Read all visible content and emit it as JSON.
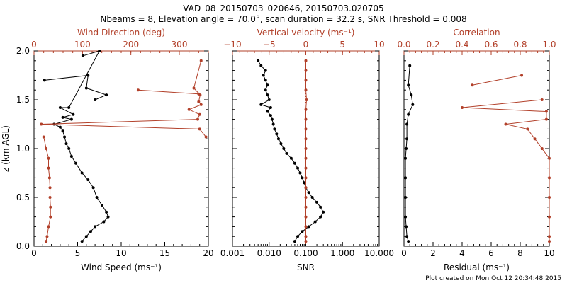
{
  "title_line1": "VAD_08_20150703_020646, 20150703.020705",
  "title_line2": "Nbeams = 8, Elevation angle = 70.0°, scan duration = 32.2 s, SNR Threshold = 0.008",
  "footer": "Plot created on Mon Oct 12 20:34:48 2015",
  "colors": {
    "black": "#000000",
    "red": "#b2402a"
  },
  "chart_data": [
    {
      "type": "scatter",
      "ylabel": "z (km AGL)",
      "ylim": [
        0,
        2
      ],
      "yticks": [
        "0.0",
        "0.5",
        "1.0",
        "1.5",
        "2.0"
      ],
      "xlabel": "Wind Speed (ms⁻¹)",
      "xlim": [
        0,
        20
      ],
      "xticks": [
        "0",
        "5",
        "10",
        "15",
        "20"
      ],
      "x2label": "Wind Direction (deg)",
      "x2lim": [
        0,
        360
      ],
      "x2ticks": [
        "0",
        "100",
        "200",
        "300"
      ],
      "series": [
        {
          "color": "#000000",
          "axis": "bottom",
          "points": [
            [
              5.6,
              1.95
            ],
            [
              7.5,
              2.0
            ],
            [
              4.0,
              1.42
            ],
            [
              3.0,
              1.42
            ],
            [
              4.5,
              1.35
            ],
            [
              3.3,
              1.32
            ],
            [
              4.3,
              1.3
            ],
            [
              2.3,
              1.25
            ],
            [
              3.0,
              1.22
            ],
            [
              3.3,
              1.18
            ],
            [
              3.5,
              1.12
            ],
            [
              3.7,
              1.05
            ],
            [
              4.0,
              1.0
            ],
            [
              4.3,
              0.92
            ],
            [
              4.8,
              0.85
            ],
            [
              5.5,
              0.75
            ],
            [
              6.2,
              0.68
            ],
            [
              6.8,
              0.6
            ],
            [
              7.2,
              0.5
            ],
            [
              7.8,
              0.42
            ],
            [
              8.3,
              0.35
            ],
            [
              8.5,
              0.3
            ],
            [
              8.0,
              0.25
            ],
            [
              7.0,
              0.2
            ],
            [
              6.5,
              0.15
            ],
            [
              6.0,
              0.1
            ],
            [
              5.5,
              0.05
            ]
          ]
        },
        {
          "color": "#000000",
          "axis": "bottom",
          "points": [
            [
              1.2,
              1.7
            ],
            [
              6.2,
              1.75
            ],
            [
              6.0,
              1.62
            ],
            [
              8.3,
              1.55
            ],
            [
              7.0,
              1.5
            ]
          ]
        },
        {
          "color": "#b2402a",
          "axis": "top",
          "points": [
            [
              345,
              1.9
            ],
            [
              330,
              1.62
            ],
            [
              343,
              1.55
            ],
            [
              340,
              1.48
            ],
            [
              345,
              1.45
            ],
            [
              320,
              1.4
            ],
            [
              342,
              1.35
            ],
            [
              338,
              1.3
            ],
            [
              15,
              1.25
            ],
            [
              342,
              1.2
            ],
            [
              355,
              1.12
            ],
            [
              20,
              1.12
            ],
            [
              25,
              1.0
            ],
            [
              30,
              0.9
            ],
            [
              30,
              0.8
            ],
            [
              32,
              0.7
            ],
            [
              33,
              0.6
            ],
            [
              33,
              0.5
            ],
            [
              34,
              0.4
            ],
            [
              34,
              0.3
            ],
            [
              30,
              0.2
            ],
            [
              27,
              0.1
            ],
            [
              25,
              0.05
            ]
          ]
        },
        {
          "color": "#b2402a",
          "axis": "top",
          "points": [
            [
              215,
              1.6
            ],
            [
              340,
              1.56
            ]
          ]
        }
      ]
    },
    {
      "type": "scatter",
      "xlabel": "SNR",
      "xscale": "log",
      "xlim": [
        0.001,
        10
      ],
      "xticks": [
        "0.001",
        "0.010",
        "0.100",
        "1.000",
        "10.000"
      ],
      "x2label": "Vertical velocity (ms⁻¹)",
      "x2lim": [
        -10,
        10
      ],
      "x2ticks": [
        "−10",
        "−5",
        "0",
        "5",
        "10"
      ],
      "series": [
        {
          "color": "#000000",
          "axis": "bottom",
          "points": [
            [
              0.005,
              1.9
            ],
            [
              0.006,
              1.85
            ],
            [
              0.008,
              1.8
            ],
            [
              0.007,
              1.75
            ],
            [
              0.008,
              1.7
            ],
            [
              0.009,
              1.65
            ],
            [
              0.008,
              1.6
            ],
            [
              0.009,
              1.55
            ],
            [
              0.01,
              1.5
            ],
            [
              0.006,
              1.45
            ],
            [
              0.011,
              1.42
            ],
            [
              0.009,
              1.38
            ],
            [
              0.011,
              1.34
            ],
            [
              0.012,
              1.3
            ],
            [
              0.013,
              1.25
            ],
            [
              0.014,
              1.2
            ],
            [
              0.016,
              1.15
            ],
            [
              0.018,
              1.1
            ],
            [
              0.021,
              1.05
            ],
            [
              0.025,
              1.0
            ],
            [
              0.03,
              0.95
            ],
            [
              0.04,
              0.9
            ],
            [
              0.05,
              0.85
            ],
            [
              0.06,
              0.8
            ],
            [
              0.07,
              0.75
            ],
            [
              0.08,
              0.7
            ],
            [
              0.09,
              0.65
            ],
            [
              0.1,
              0.6
            ],
            [
              0.12,
              0.55
            ],
            [
              0.15,
              0.5
            ],
            [
              0.2,
              0.45
            ],
            [
              0.25,
              0.4
            ],
            [
              0.3,
              0.35
            ],
            [
              0.25,
              0.3
            ],
            [
              0.18,
              0.25
            ],
            [
              0.12,
              0.2
            ],
            [
              0.08,
              0.15
            ],
            [
              0.06,
              0.1
            ],
            [
              0.05,
              0.05
            ]
          ]
        },
        {
          "color": "#b2402a",
          "axis": "top",
          "points": [
            [
              0,
              1.9
            ],
            [
              0,
              1.8
            ],
            [
              0,
              1.7
            ],
            [
              0,
              1.6
            ],
            [
              0.1,
              1.5
            ],
            [
              0,
              1.4
            ],
            [
              0,
              1.3
            ],
            [
              0,
              1.2
            ],
            [
              0,
              1.1
            ],
            [
              0,
              1.0
            ],
            [
              0,
              0.9
            ],
            [
              0,
              0.8
            ],
            [
              0,
              0.7
            ],
            [
              0,
              0.6
            ],
            [
              0,
              0.5
            ],
            [
              0,
              0.4
            ],
            [
              0,
              0.3
            ],
            [
              0,
              0.2
            ],
            [
              0,
              0.1
            ],
            [
              0,
              0.05
            ]
          ]
        }
      ]
    },
    {
      "type": "scatter",
      "xlabel": "Residual (ms⁻¹)",
      "xlim": [
        0,
        10
      ],
      "xticks": [
        "0",
        "2",
        "4",
        "6",
        "8",
        "10"
      ],
      "x2label": "Correlation",
      "x2lim": [
        0,
        1
      ],
      "x2ticks": [
        "0.0",
        "0.2",
        "0.4",
        "0.6",
        "0.8",
        "1.0"
      ],
      "series": [
        {
          "color": "#000000",
          "axis": "bottom",
          "points": [
            [
              0.4,
              1.85
            ],
            [
              0.3,
              1.65
            ],
            [
              0.5,
              1.55
            ],
            [
              0.6,
              1.45
            ],
            [
              0.3,
              1.35
            ],
            [
              0.2,
              1.25
            ],
            [
              0.2,
              1.1
            ],
            [
              0.15,
              1.0
            ],
            [
              0.1,
              0.9
            ],
            [
              0.1,
              0.7
            ],
            [
              0.1,
              0.5
            ],
            [
              0.1,
              0.3
            ],
            [
              0.15,
              0.2
            ],
            [
              0.2,
              0.1
            ],
            [
              0.3,
              0.05
            ]
          ]
        },
        {
          "color": "#b2402a",
          "axis": "top",
          "points": [
            [
              0.95,
              1.5
            ],
            [
              0.4,
              1.42
            ],
            [
              0.98,
              1.38
            ],
            [
              0.98,
              1.3
            ],
            [
              0.7,
              1.25
            ],
            [
              0.85,
              1.2
            ],
            [
              0.9,
              1.1
            ],
            [
              0.95,
              1.0
            ],
            [
              1.0,
              0.9
            ],
            [
              1.0,
              0.7
            ],
            [
              1.0,
              0.5
            ],
            [
              1.0,
              0.3
            ],
            [
              1.0,
              0.1
            ],
            [
              1.0,
              0.05
            ]
          ]
        },
        {
          "color": "#b2402a",
          "axis": "top",
          "points": [
            [
              0.47,
              1.65
            ],
            [
              0.81,
              1.75
            ]
          ]
        }
      ]
    }
  ]
}
